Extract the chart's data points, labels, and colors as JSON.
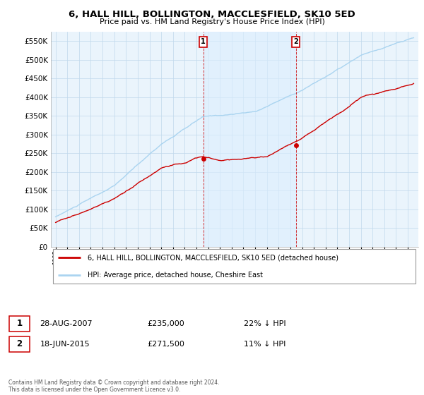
{
  "title": "6, HALL HILL, BOLLINGTON, MACCLESFIELD, SK10 5ED",
  "subtitle": "Price paid vs. HM Land Registry's House Price Index (HPI)",
  "legend_entry1": "6, HALL HILL, BOLLINGTON, MACCLESFIELD, SK10 5ED (detached house)",
  "legend_entry2": "HPI: Average price, detached house, Cheshire East",
  "sale1_date": "28-AUG-2007",
  "sale1_price": "£235,000",
  "sale1_hpi": "22% ↓ HPI",
  "sale2_date": "18-JUN-2015",
  "sale2_price": "£271,500",
  "sale2_hpi": "11% ↓ HPI",
  "footer": "Contains HM Land Registry data © Crown copyright and database right 2024.\nThis data is licensed under the Open Government Licence v3.0.",
  "hpi_color": "#aad4f0",
  "price_color": "#cc0000",
  "annotation_box_color": "#cc0000",
  "shade_color": "#dceeff",
  "ylim_min": 0,
  "ylim_max": 575000,
  "yticks": [
    0,
    50000,
    100000,
    150000,
    200000,
    250000,
    300000,
    350000,
    400000,
    450000,
    500000,
    550000
  ],
  "background_color": "#ffffff",
  "plot_bg_color": "#eaf4fc",
  "grid_color": "#c0d8ec",
  "sale1_year": 2007.58,
  "sale1_val": 235000,
  "sale2_year": 2015.46,
  "sale2_val": 271500
}
